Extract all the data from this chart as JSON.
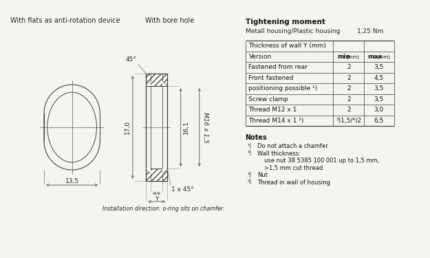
{
  "bg_color": "#f5f5f0",
  "title_left1": "With flats as anti-rotation device",
  "title_left2": "With bore hole",
  "tightening_title": "Tightening moment",
  "tightening_sub": "Metall housing/Plastic housing",
  "tightening_val": "1,25 Nm",
  "table_header": "Thickness of wall Y (mm)",
  "table_rows": [
    [
      "Fastened from rear",
      "2",
      "3,5"
    ],
    [
      "Front fastened",
      "2",
      "4,5"
    ],
    [
      "positioning possible ¹)",
      "2",
      "3,5"
    ],
    [
      "Screw clamp",
      "2",
      "3,5"
    ],
    [
      "Thread M12 x 1",
      "2",
      "3,0"
    ],
    [
      "Thread M14 x 1 ²)",
      "³)1,5/⁴)2",
      "6,5"
    ]
  ],
  "notes_title": "Notes",
  "notes": [
    [
      "¹)",
      "Do not attach a chamfer"
    ],
    [
      "²)",
      "Wall thickness:"
    ],
    [
      "",
      "use nut 38 5385 100 001 up to 1,5 mm,"
    ],
    [
      "",
      ">1,5 mm cut thread"
    ],
    [
      "³)",
      "Nut"
    ],
    [
      "⁴)",
      "Thread in wall of housing"
    ]
  ],
  "dim_170": "17,0",
  "dim_161": "16,1",
  "dim_135": "13,5",
  "dim_m16": "M16 x 1,5",
  "dim_45top": "45°",
  "dim_1x45": "1 x 45°",
  "dim_y": "Y",
  "install_note": "Installation direction: o-ring sits on chamfer."
}
